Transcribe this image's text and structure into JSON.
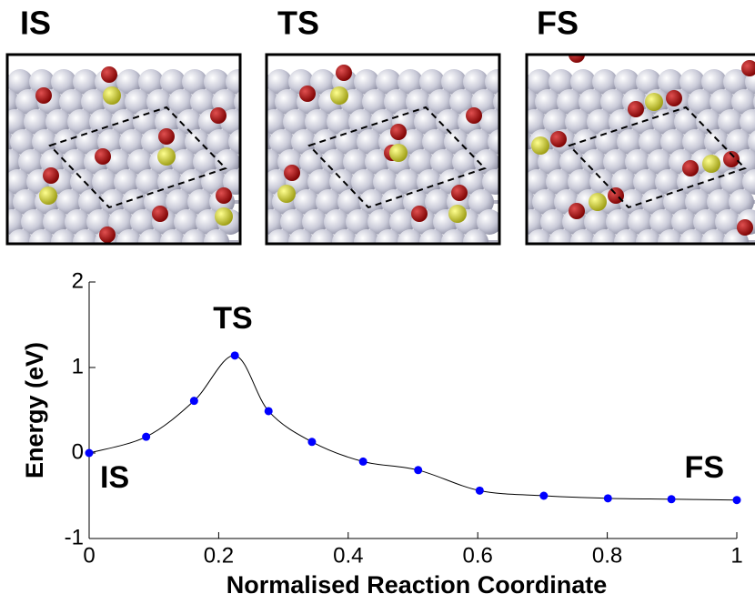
{
  "panels": [
    {
      "label": "IS"
    },
    {
      "label": "TS"
    },
    {
      "label": "FS"
    }
  ],
  "chart_data": {
    "type": "line",
    "xlabel": "Normalised Reaction Coordinate",
    "ylabel": "Energy (eV)",
    "annotations": [
      "TS",
      "IS",
      "FS"
    ],
    "x": [
      0,
      0.088,
      0.162,
      0.225,
      0.277,
      0.344,
      0.423,
      0.508,
      0.603,
      0.702,
      0.801,
      0.899,
      1
    ],
    "series": [
      {
        "color": "#0000ff",
        "line_color": "#000000",
        "values": [
          0,
          0.19,
          0.61,
          1.14,
          0.49,
          0.13,
          -0.1,
          -0.2,
          -0.44,
          -0.5,
          -0.53,
          -0.54,
          -0.55
        ]
      }
    ],
    "xlim": [
      0,
      1
    ],
    "xticks": [
      0,
      0.2,
      0.4,
      0.6,
      0.8,
      1
    ],
    "ylim": [
      -1,
      2
    ],
    "yticks": [
      -1,
      0,
      1,
      2
    ],
    "grid": false
  }
}
